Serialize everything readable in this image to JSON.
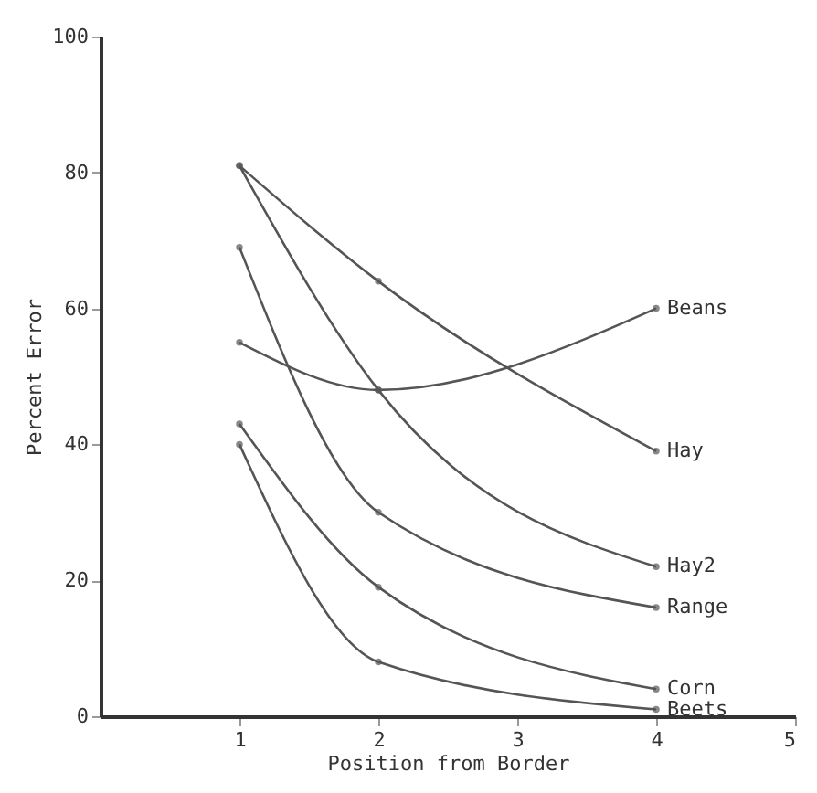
{
  "chart_data": {
    "type": "line",
    "xlabel": "Position from Border",
    "ylabel": "Percent   Error",
    "xlim": [
      0,
      5
    ],
    "xticks": [
      1,
      2,
      3,
      4,
      5
    ],
    "ylim": [
      0,
      100
    ],
    "yticks": [
      0,
      20,
      40,
      60,
      80,
      100
    ],
    "grid": false,
    "marker": "circle",
    "line_style": "solid",
    "series": [
      {
        "name": "Beans",
        "color": "#555555",
        "x": [
          1,
          2,
          4
        ],
        "values": [
          55,
          48,
          60
        ]
      },
      {
        "name": "Hay",
        "color": "#555555",
        "x": [
          1,
          2,
          4
        ],
        "values": [
          81,
          64,
          39
        ]
      },
      {
        "name": "Hay2",
        "color": "#555555",
        "x": [
          1,
          2,
          4
        ],
        "values": [
          81,
          48,
          22
        ]
      },
      {
        "name": "Range",
        "color": "#555555",
        "x": [
          1,
          2,
          4
        ],
        "values": [
          69,
          30,
          16
        ]
      },
      {
        "name": "Corn",
        "color": "#555555",
        "x": [
          1,
          2,
          4
        ],
        "values": [
          43,
          19,
          4
        ]
      },
      {
        "name": "Beets",
        "color": "#555555",
        "x": [
          1,
          2,
          4
        ],
        "values": [
          40,
          8,
          1
        ]
      }
    ]
  }
}
